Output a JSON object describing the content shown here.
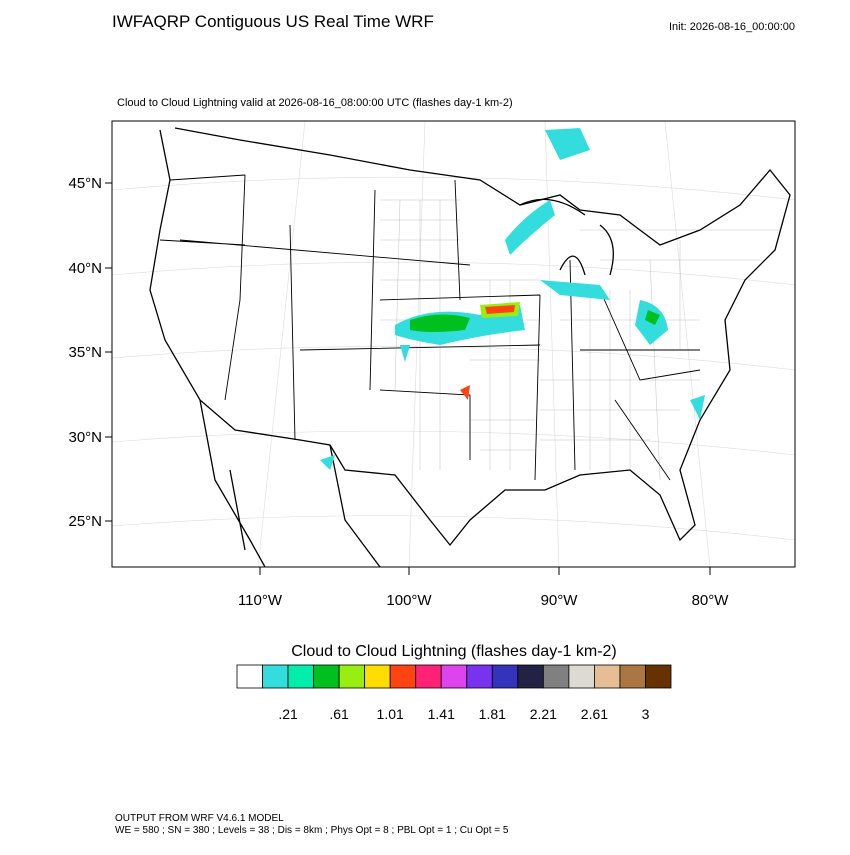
{
  "header": {
    "title": "IWFAQRP Contiguous US Real Time WRF",
    "init": "Init: 2026-08-16_00:00:00"
  },
  "map": {
    "subtitle": "Cloud to Cloud Lightning valid at 2026-08-16_08:00:00 UTC   (flashes day-1 km-2)",
    "lat_labels": [
      "45°N",
      "40°N",
      "35°N",
      "30°N",
      "25°N"
    ],
    "lon_labels": [
      "110°W",
      "100°W",
      "90°W",
      "80°W"
    ]
  },
  "colorbar": {
    "title": "Cloud to Cloud Lightning  (flashes day-1 km-2)",
    "colors": [
      "#ffffff",
      "#33dddd",
      "#00eeaa",
      "#00c020",
      "#99ee11",
      "#ffdd00",
      "#ff4411",
      "#ff2277",
      "#dd44ee",
      "#7733ee",
      "#3333bb",
      "#222244",
      "#808080",
      "#dddad4",
      "#e6be96",
      "#aa7744",
      "#663300"
    ],
    "labels": [
      ".21",
      ".61",
      "1.01",
      "1.41",
      "1.81",
      "2.21",
      "2.61",
      "3"
    ]
  },
  "footer": {
    "line1": "OUTPUT FROM WRF V4.6.1 MODEL",
    "line2": "WE = 580 ; SN = 380 ; Levels = 38 ; Dis = 8km ; Phys Opt = 8 ; PBL Opt = 1 ; Cu Opt = 5"
  }
}
